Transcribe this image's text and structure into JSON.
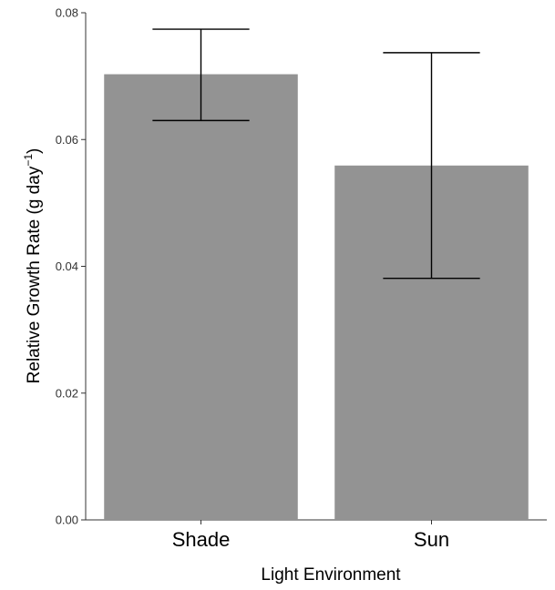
{
  "chart_data": {
    "type": "bar",
    "title": "",
    "xlabel": "Light Environment",
    "ylabel_main": "Relative Growth Rate (g day",
    "ylabel_sup": "−1",
    "ylabel_close": ")",
    "categories": [
      "Shade",
      "Sun"
    ],
    "values": [
      0.0703,
      0.0559
    ],
    "error_upper": [
      0.0774,
      0.0737
    ],
    "error_lower": [
      0.063,
      0.0381
    ],
    "ylim": [
      0,
      0.08
    ],
    "yticks": [
      0,
      0.02,
      0.04,
      0.06,
      0.08
    ],
    "ytick_labels": [
      "0.00",
      "0.02",
      "0.04",
      "0.06",
      "0.08"
    ],
    "grid": false,
    "bar_color": "#939393",
    "error_bar_color": "#000000"
  }
}
